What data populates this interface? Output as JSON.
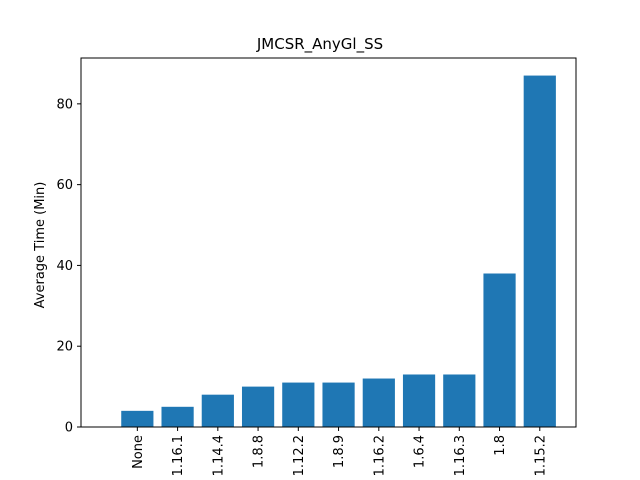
{
  "chart_data": {
    "type": "bar",
    "title": "JMCSR_AnyGl_SS",
    "xlabel": "",
    "ylabel": "Average Time (Min)",
    "categories": [
      "None",
      "1.16.1",
      "1.14.4",
      "1.8.8",
      "1.12.2",
      "1.8.9",
      "1.16.2",
      "1.6.4",
      "1.16.3",
      "1.8",
      "1.15.2"
    ],
    "values": [
      4,
      5,
      8,
      10,
      11,
      11,
      12,
      13,
      13,
      38,
      87
    ],
    "ylim": [
      0,
      91.35
    ],
    "yticks": [
      0,
      20,
      40,
      60,
      80
    ],
    "bar_color": "#1f77b4",
    "grid": false,
    "legend": "none"
  }
}
